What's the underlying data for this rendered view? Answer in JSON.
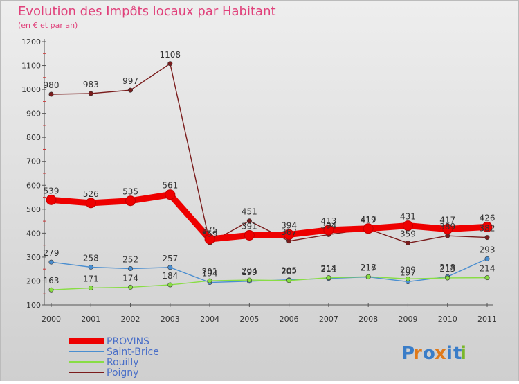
{
  "chart_data": {
    "type": "line",
    "title": "Evolution des Impôts locaux par Habitant",
    "subtitle": "(en € et par an)",
    "xlabel": "",
    "ylabel": "",
    "ylim": [
      100,
      1200
    ],
    "yticks": [
      100,
      200,
      300,
      400,
      500,
      600,
      700,
      800,
      900,
      1000,
      1100,
      1200
    ],
    "categories": [
      "2000",
      "2001",
      "2002",
      "2003",
      "2004",
      "2005",
      "2006",
      "2007",
      "2008",
      "2009",
      "2010",
      "2011"
    ],
    "grid": false,
    "legend_position": "bottom-left",
    "series": [
      {
        "name": "PROVINS",
        "color": "#ee0000",
        "values": [
          539,
          526,
          535,
          561,
          375,
          391,
          394,
          413,
          419,
          431,
          417,
          426
        ],
        "labels": [
          "539",
          "526",
          "535",
          "561",
          "375",
          "391",
          "394",
          "413",
          "419",
          "431",
          "417",
          "426"
        ]
      },
      {
        "name": "Saint-Brice",
        "color": "#4a8ed0",
        "values": [
          279,
          258,
          252,
          257,
          194,
          199,
          205,
          211,
          217,
          197,
          218,
          293
        ],
        "labels": [
          "279",
          "258",
          "252",
          "257",
          "194",
          "199",
          "205",
          "211",
          "217",
          "197",
          "218",
          "293"
        ]
      },
      {
        "name": "Rouilly",
        "color": "#88dd44",
        "values": [
          163,
          171,
          174,
          184,
          201,
          204,
          202,
          214,
          218,
          209,
          213,
          214
        ],
        "labels": [
          "163",
          "171",
          "174",
          "184",
          "201",
          "204",
          "202",
          "214",
          "218",
          "209",
          "213",
          "214"
        ]
      },
      {
        "name": "Poigny",
        "color": "#7a1c1c",
        "values": [
          980,
          983,
          997,
          1108,
          359,
          451,
          367,
          394,
          417,
          359,
          389,
          382
        ],
        "labels": [
          "980",
          "983",
          "997",
          "1108",
          "359",
          "451",
          "367",
          "394",
          "417",
          "359",
          "389",
          "382"
        ]
      }
    ]
  },
  "logo": {
    "text": "Proxiti",
    "letters": [
      "P",
      "r",
      "o",
      "x",
      "i",
      "t",
      "i"
    ],
    "colors": [
      "#3a7dc8",
      "#e07a1a",
      "#3a7dc8",
      "#e07a1a",
      "#3a7dc8",
      "#3a7dc8",
      "#7ab82a"
    ]
  }
}
